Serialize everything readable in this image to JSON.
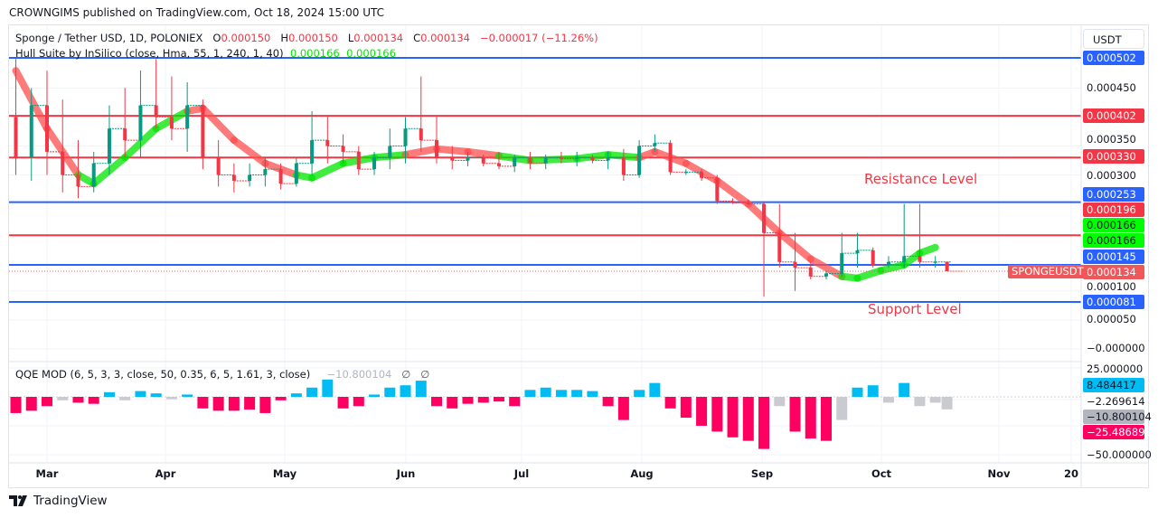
{
  "header": {
    "published": "CROWNGIMS published on TradingView.com, Oct 18, 2024 15:00 UTC"
  },
  "legend": {
    "symbol": "Sponge / Tether USD, 1D, POLONIEX",
    "o_label": "O",
    "o": "0.000150",
    "h_label": "H",
    "h": "0.000150",
    "l_label": "L",
    "l": "0.000134",
    "c_label": "C",
    "c": "0.000134",
    "change": "−0.000017 (−11.26%)",
    "hull": "Hull Suite by InSilico (close, Hma, 55, 1, 240, 1, 40)",
    "hull_v1": "0.000166",
    "hull_v2": "0.000166",
    "qqe": "QQE MOD (6, 5, 3, 3, close, 50, 0.35, 6, 5, 1.61, 3, close)",
    "qqe_v": "−10.800104",
    "qqe_na1": "∅",
    "qqe_na2": "∅"
  },
  "price_axis": {
    "currency": "USDT",
    "ticks": [
      "0.000450",
      "0.000350",
      "0.000300",
      "0.000100",
      "0.000050",
      "−0.000000"
    ],
    "labels": [
      {
        "text": "0.000502",
        "color": "#2962ff"
      },
      {
        "text": "0.000402",
        "color": "#f23645"
      },
      {
        "text": "0.000330",
        "color": "#f23645"
      },
      {
        "text": "0.000253",
        "color": "#2962ff"
      },
      {
        "text": "0.000196",
        "color": "#f23645"
      },
      {
        "text": "0.000166",
        "color": "#00ff00"
      },
      {
        "text": "0.000166",
        "color": "#00ff00"
      },
      {
        "text": "0.000145",
        "color": "#2962ff"
      },
      {
        "text": "0.000134",
        "color": "#f0575b"
      },
      {
        "text": "0.000081",
        "color": "#2962ff"
      }
    ],
    "symbol_tag": "SPONGEUSDT"
  },
  "qqe_axis": {
    "ticks": [
      "25.000000",
      "−2.269614",
      "−50.000000"
    ],
    "labels": [
      {
        "text": "8.484417",
        "color": "#00bcf2"
      },
      {
        "text": "−10.800104",
        "color": "#b2b5be"
      },
      {
        "text": "−25.486893",
        "color": "#ff0060"
      }
    ]
  },
  "time_axis": [
    "Mar",
    "Apr",
    "May",
    "Jun",
    "Jul",
    "Aug",
    "Sep",
    "Oct",
    "Nov",
    "20"
  ],
  "annotations": {
    "resistance": "Resistance Level",
    "support": "Support Level"
  },
  "footer": {
    "brand": "TradingView"
  },
  "chart_data": {
    "type": "candlestick",
    "symbol": "SPONGEUSDT",
    "ylim": [
      0,
      0.00055
    ],
    "levels": [
      {
        "value": 0.000502,
        "color": "#2962ff"
      },
      {
        "value": 0.000402,
        "color": "#f23645"
      },
      {
        "value": 0.00033,
        "color": "#f23645"
      },
      {
        "value": 0.000253,
        "color": "#2962ff"
      },
      {
        "value": 0.000196,
        "color": "#f23645"
      },
      {
        "value": 0.000145,
        "color": "#2962ff"
      },
      {
        "value": 8.1e-05,
        "color": "#2962ff"
      }
    ],
    "candles": [
      [
        "2024-02-22",
        0.0004,
        0.0005,
        0.0003,
        0.00033
      ],
      [
        "2024-02-26",
        0.00033,
        0.00045,
        0.00029,
        0.00042
      ],
      [
        "2024-03-01",
        0.00042,
        0.00048,
        0.0003,
        0.00034
      ],
      [
        "2024-03-05",
        0.00034,
        0.00043,
        0.00027,
        0.0003
      ],
      [
        "2024-03-09",
        0.0003,
        0.00036,
        0.00026,
        0.00028
      ],
      [
        "2024-03-13",
        0.00028,
        0.00034,
        0.00027,
        0.00032
      ],
      [
        "2024-03-17",
        0.00032,
        0.00042,
        0.0003,
        0.00038
      ],
      [
        "2024-03-21",
        0.00038,
        0.00045,
        0.00033,
        0.00036
      ],
      [
        "2024-03-25",
        0.00036,
        0.00048,
        0.00033,
        0.00042
      ],
      [
        "2024-03-29",
        0.00042,
        0.0005,
        0.00038,
        0.0004
      ],
      [
        "2024-04-02",
        0.0004,
        0.00047,
        0.00036,
        0.00038
      ],
      [
        "2024-04-06",
        0.00038,
        0.00046,
        0.00034,
        0.00042
      ],
      [
        "2024-04-10",
        0.00042,
        0.00043,
        0.00031,
        0.00033
      ],
      [
        "2024-04-14",
        0.00033,
        0.00036,
        0.00028,
        0.0003
      ],
      [
        "2024-04-18",
        0.0003,
        0.00032,
        0.00027,
        0.00029
      ],
      [
        "2024-04-22",
        0.00029,
        0.00032,
        0.00028,
        0.0003
      ],
      [
        "2024-04-26",
        0.0003,
        0.00033,
        0.00028,
        0.00031
      ],
      [
        "2024-04-30",
        0.00031,
        0.00032,
        0.000275,
        0.000285
      ],
      [
        "2024-05-04",
        0.000285,
        0.00033,
        0.00028,
        0.00032
      ],
      [
        "2024-05-08",
        0.00032,
        0.00041,
        0.0003,
        0.00036
      ],
      [
        "2024-05-12",
        0.00036,
        0.0004,
        0.00032,
        0.00035
      ],
      [
        "2024-05-16",
        0.00035,
        0.00037,
        0.00032,
        0.00034
      ],
      [
        "2024-05-20",
        0.00034,
        0.00035,
        0.0003,
        0.00031
      ],
      [
        "2024-05-24",
        0.00031,
        0.00034,
        0.0003,
        0.00033
      ],
      [
        "2024-05-28",
        0.00033,
        0.00038,
        0.00031,
        0.00035
      ],
      [
        "2024-06-01",
        0.00035,
        0.0004,
        0.00032,
        0.00038
      ],
      [
        "2024-06-05",
        0.00038,
        0.00047,
        0.00034,
        0.00036
      ],
      [
        "2024-06-09",
        0.00036,
        0.0004,
        0.00032,
        0.00033
      ],
      [
        "2024-06-13",
        0.00033,
        0.00035,
        0.00031,
        0.000325
      ],
      [
        "2024-06-17",
        0.000325,
        0.00034,
        0.000315,
        0.00033
      ],
      [
        "2024-06-21",
        0.00033,
        0.000335,
        0.000315,
        0.00032
      ],
      [
        "2024-06-25",
        0.00032,
        0.00034,
        0.00031,
        0.000315
      ],
      [
        "2024-06-29",
        0.000315,
        0.000335,
        0.000305,
        0.00033
      ],
      [
        "2024-07-03",
        0.00033,
        0.00034,
        0.00031,
        0.00032
      ],
      [
        "2024-07-07",
        0.00032,
        0.000335,
        0.00031,
        0.00033
      ],
      [
        "2024-07-11",
        0.00033,
        0.00034,
        0.00032,
        0.000328
      ],
      [
        "2024-07-15",
        0.000328,
        0.00034,
        0.000315,
        0.00033
      ],
      [
        "2024-07-19",
        0.00033,
        0.000335,
        0.00032,
        0.000325
      ],
      [
        "2024-07-23",
        0.000325,
        0.00034,
        0.00031,
        0.00033
      ],
      [
        "2024-07-27",
        0.00033,
        0.000345,
        0.00029,
        0.0003
      ],
      [
        "2024-07-31",
        0.0003,
        0.00036,
        0.000295,
        0.00035
      ],
      [
        "2024-08-04",
        0.00035,
        0.00037,
        0.00034,
        0.000355
      ],
      [
        "2024-08-08",
        0.000355,
        0.00036,
        0.0003,
        0.000305
      ],
      [
        "2024-08-12",
        0.000305,
        0.00031,
        0.0003,
        0.000305
      ],
      [
        "2024-08-16",
        0.000305,
        0.00031,
        0.00029,
        0.000295
      ],
      [
        "2024-08-20",
        0.000295,
        0.0003,
        0.00025,
        0.000255
      ],
      [
        "2024-08-24",
        0.000255,
        0.00026,
        0.00025,
        0.000252
      ],
      [
        "2024-08-28",
        0.000252,
        0.000258,
        0.000248,
        0.00025
      ],
      [
        "2024-09-01",
        0.00025,
        0.000255,
        9e-05,
        0.0002
      ],
      [
        "2024-09-05",
        0.0002,
        0.00025,
        0.00014,
        0.00015
      ],
      [
        "2024-09-09",
        0.00015,
        0.0002,
        0.0001,
        0.00014
      ],
      [
        "2024-09-13",
        0.00014,
        0.00015,
        0.00012,
        0.000125
      ],
      [
        "2024-09-17",
        0.000125,
        0.000135,
        0.00012,
        0.00013
      ],
      [
        "2024-09-21",
        0.00013,
        0.0002,
        0.000125,
        0.000165
      ],
      [
        "2024-09-25",
        0.000165,
        0.0002,
        0.00014,
        0.00017
      ],
      [
        "2024-09-29",
        0.00017,
        0.000175,
        0.00014,
        0.000145
      ],
      [
        "2024-10-03",
        0.000145,
        0.00016,
        0.00014,
        0.00015
      ],
      [
        "2024-10-07",
        0.00015,
        0.00025,
        0.00014,
        0.00016
      ],
      [
        "2024-10-11",
        0.00016,
        0.00025,
        0.00014,
        0.00015
      ],
      [
        "2024-10-15",
        0.00015,
        0.00016,
        0.00014,
        0.00015
      ],
      [
        "2024-10-18",
        0.00015,
        0.00015,
        0.000134,
        0.000134
      ]
    ],
    "hull": [
      [
        "2024-02-22",
        0.00048,
        "down"
      ],
      [
        "2024-03-01",
        0.00038,
        "down"
      ],
      [
        "2024-03-09",
        0.0003,
        "down"
      ],
      [
        "2024-03-13",
        0.000285,
        "up"
      ],
      [
        "2024-03-21",
        0.00033,
        "up"
      ],
      [
        "2024-03-29",
        0.00038,
        "up"
      ],
      [
        "2024-04-06",
        0.00041,
        "up"
      ],
      [
        "2024-04-10",
        0.000415,
        "down"
      ],
      [
        "2024-04-18",
        0.00036,
        "down"
      ],
      [
        "2024-04-26",
        0.00032,
        "down"
      ],
      [
        "2024-05-04",
        0.0003,
        "down"
      ],
      [
        "2024-05-08",
        0.000295,
        "up"
      ],
      [
        "2024-05-16",
        0.00032,
        "up"
      ],
      [
        "2024-05-24",
        0.00033,
        "up"
      ],
      [
        "2024-06-01",
        0.000335,
        "up"
      ],
      [
        "2024-06-09",
        0.000345,
        "down"
      ],
      [
        "2024-06-17",
        0.00034,
        "down"
      ],
      [
        "2024-06-25",
        0.000333,
        "down"
      ],
      [
        "2024-07-03",
        0.000325,
        "up"
      ],
      [
        "2024-07-15",
        0.000328,
        "up"
      ],
      [
        "2024-07-23",
        0.000335,
        "up"
      ],
      [
        "2024-07-31",
        0.00033,
        "up"
      ],
      [
        "2024-08-04",
        0.00034,
        "down"
      ],
      [
        "2024-08-12",
        0.00032,
        "down"
      ],
      [
        "2024-08-20",
        0.00029,
        "down"
      ],
      [
        "2024-08-28",
        0.00025,
        "down"
      ],
      [
        "2024-09-05",
        0.0002,
        "down"
      ],
      [
        "2024-09-13",
        0.000155,
        "down"
      ],
      [
        "2024-09-21",
        0.000125,
        "down"
      ],
      [
        "2024-09-25",
        0.000122,
        "up"
      ],
      [
        "2024-10-01",
        0.000135,
        "up"
      ],
      [
        "2024-10-07",
        0.000145,
        "up"
      ],
      [
        "2024-10-11",
        0.000165,
        "up"
      ],
      [
        "2024-10-15",
        0.000175,
        "up"
      ]
    ],
    "qqe": {
      "ylim": [
        -50,
        25
      ],
      "colors": {
        "pink": "#ff0060",
        "blue": "#00bcf2",
        "gray": "#c9cbd1"
      },
      "bars": [
        [
          "2024-02-22",
          -14,
          "pink"
        ],
        [
          "2024-02-26",
          -12,
          "pink"
        ],
        [
          "2024-03-01",
          -8,
          "pink"
        ],
        [
          "2024-03-05",
          -3,
          "gray"
        ],
        [
          "2024-03-09",
          -5,
          "pink"
        ],
        [
          "2024-03-13",
          -6,
          "pink"
        ],
        [
          "2024-03-17",
          4,
          "blue"
        ],
        [
          "2024-03-21",
          -3,
          "gray"
        ],
        [
          "2024-03-25",
          5,
          "blue"
        ],
        [
          "2024-03-29",
          3,
          "blue"
        ],
        [
          "2024-04-02",
          -2,
          "gray"
        ],
        [
          "2024-04-06",
          2,
          "blue"
        ],
        [
          "2024-04-10",
          -10,
          "pink"
        ],
        [
          "2024-04-14",
          -12,
          "pink"
        ],
        [
          "2024-04-18",
          -12,
          "pink"
        ],
        [
          "2024-04-22",
          -11,
          "pink"
        ],
        [
          "2024-04-26",
          -14,
          "pink"
        ],
        [
          "2024-04-30",
          -3,
          "pink"
        ],
        [
          "2024-05-04",
          3,
          "blue"
        ],
        [
          "2024-05-08",
          8,
          "blue"
        ],
        [
          "2024-05-12",
          15,
          "blue"
        ],
        [
          "2024-05-16",
          -10,
          "pink"
        ],
        [
          "2024-05-20",
          -8,
          "pink"
        ],
        [
          "2024-05-24",
          2,
          "blue"
        ],
        [
          "2024-05-28",
          8,
          "blue"
        ],
        [
          "2024-06-01",
          10,
          "blue"
        ],
        [
          "2024-06-05",
          14,
          "blue"
        ],
        [
          "2024-06-09",
          -8,
          "pink"
        ],
        [
          "2024-06-13",
          -10,
          "pink"
        ],
        [
          "2024-06-17",
          -6,
          "pink"
        ],
        [
          "2024-06-21",
          -5,
          "pink"
        ],
        [
          "2024-06-25",
          -4,
          "pink"
        ],
        [
          "2024-06-29",
          -8,
          "pink"
        ],
        [
          "2024-07-03",
          6,
          "blue"
        ],
        [
          "2024-07-07",
          8,
          "blue"
        ],
        [
          "2024-07-11",
          6,
          "blue"
        ],
        [
          "2024-07-15",
          6,
          "blue"
        ],
        [
          "2024-07-19",
          5,
          "blue"
        ],
        [
          "2024-07-23",
          -8,
          "pink"
        ],
        [
          "2024-07-27",
          -20,
          "pink"
        ],
        [
          "2024-07-31",
          6,
          "blue"
        ],
        [
          "2024-08-04",
          12,
          "blue"
        ],
        [
          "2024-08-08",
          -10,
          "pink"
        ],
        [
          "2024-08-12",
          -18,
          "pink"
        ],
        [
          "2024-08-16",
          -25,
          "pink"
        ],
        [
          "2024-08-20",
          -30,
          "pink"
        ],
        [
          "2024-08-24",
          -35,
          "pink"
        ],
        [
          "2024-08-28",
          -38,
          "pink"
        ],
        [
          "2024-09-01",
          -45,
          "pink"
        ],
        [
          "2024-09-05",
          -8,
          "gray"
        ],
        [
          "2024-09-09",
          -30,
          "pink"
        ],
        [
          "2024-09-13",
          -36,
          "pink"
        ],
        [
          "2024-09-17",
          -38,
          "pink"
        ],
        [
          "2024-09-21",
          -20,
          "gray"
        ],
        [
          "2024-09-25",
          8,
          "blue"
        ],
        [
          "2024-09-29",
          10,
          "blue"
        ],
        [
          "2024-10-03",
          -5,
          "gray"
        ],
        [
          "2024-10-07",
          12,
          "blue"
        ],
        [
          "2024-10-11",
          -8,
          "gray"
        ],
        [
          "2024-10-15",
          -5,
          "gray"
        ],
        [
          "2024-10-18",
          -10.8,
          "gray"
        ]
      ]
    },
    "colors": {
      "up": "#089981",
      "down": "#f23645",
      "hull_up": "#00e600",
      "hull_down": "#ff4d4d"
    }
  }
}
